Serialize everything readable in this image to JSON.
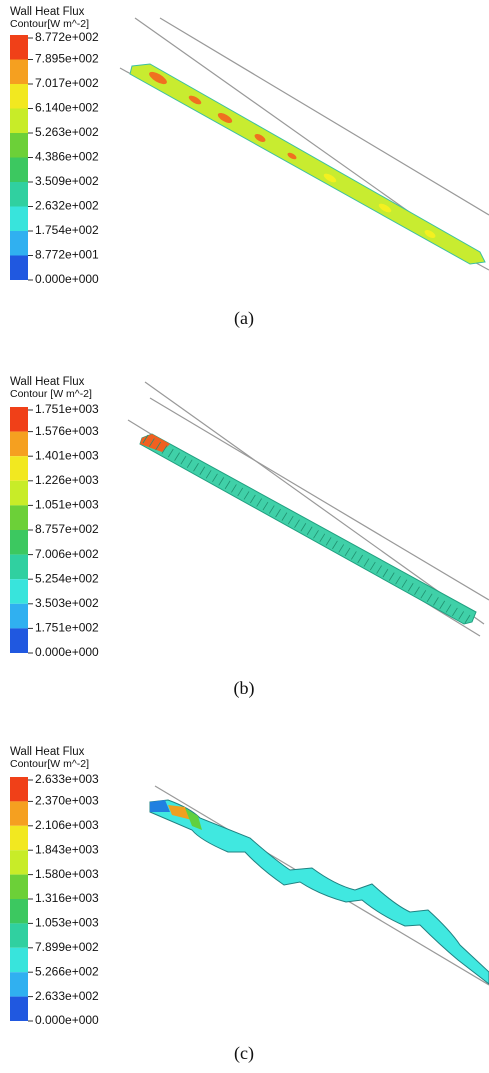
{
  "panels": [
    {
      "title": "Wall Heat Flux",
      "subtitle": "Contour[W m^-2]",
      "legend_labels": [
        "8.772e+002",
        "7.895e+002",
        "7.017e+002",
        "6.140e+002",
        "5.263e+002",
        "4.386e+002",
        "3.509e+002",
        "2.632e+002",
        "1.754e+002",
        "8.772e+001",
        "0.000e+000"
      ],
      "caption": "(a)"
    },
    {
      "title": "Wall Heat Flux",
      "subtitle": "Contour [W m^-2]",
      "legend_labels": [
        "1.751e+003",
        "1.576e+003",
        "1.401e+003",
        "1.226e+003",
        "1.051e+003",
        "8.757e+002",
        "7.006e+002",
        "5.254e+002",
        "3.503e+002",
        "1.751e+002",
        "0.000e+000"
      ],
      "caption": "(b)"
    },
    {
      "title": "Wall Heat Flux",
      "subtitle": "Contour[W m^-2]",
      "legend_labels": [
        "2.633e+003",
        "2.370e+003",
        "2.106e+003",
        "1.843e+003",
        "1.580e+003",
        "1.316e+003",
        "1.053e+003",
        "7.899e+002",
        "5.266e+002",
        "2.633e+002",
        "0.000e+000"
      ],
      "caption": "(c)"
    }
  ]
}
